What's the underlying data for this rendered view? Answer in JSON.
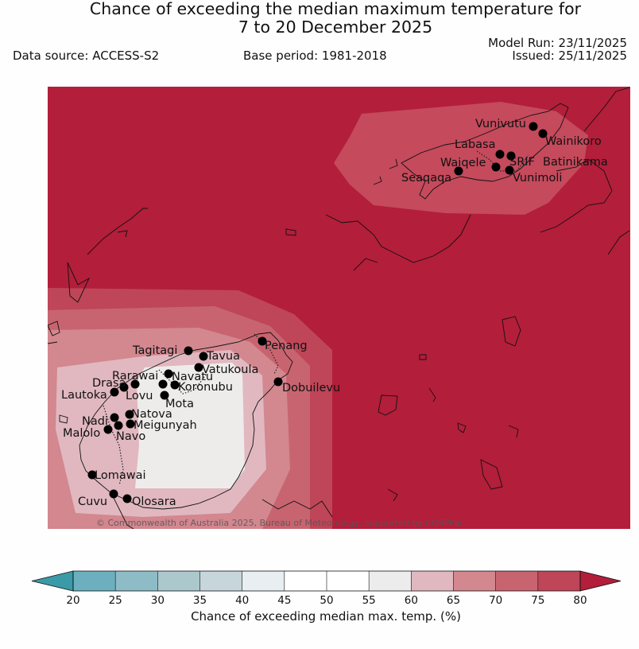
{
  "header": {
    "title_line1": "Chance of exceeding the median maximum temperature for",
    "title_line2": "7 to 20 December 2025",
    "data_source": "Data source: ACCESS-S2",
    "base_period": "Base period: 1981-2018",
    "model_run": "Model Run: 23/11/2025",
    "issued": "Issued: 25/11/2025"
  },
  "map": {
    "copyright": "© Commonwealth of Australia 2025, Bureau of Meteorology, supported by COSPPac",
    "background_color": "#b31e3b",
    "places": [
      {
        "name": "Vunivutu"
      },
      {
        "name": "Wainikoro"
      },
      {
        "name": "Labasa"
      },
      {
        "name": "SRIF"
      },
      {
        "name": "Batinikama"
      },
      {
        "name": "Waiqele"
      },
      {
        "name": "Seaqaqa"
      },
      {
        "name": "Vunimoli"
      },
      {
        "name": "Penang"
      },
      {
        "name": "Tagitagi"
      },
      {
        "name": "Tavua"
      },
      {
        "name": "Vatukoula"
      },
      {
        "name": "Rarawai"
      },
      {
        "name": "Navatu"
      },
      {
        "name": "Koronubu"
      },
      {
        "name": "Dobuilevu"
      },
      {
        "name": "Drasa"
      },
      {
        "name": "Lautoka"
      },
      {
        "name": "Lovu"
      },
      {
        "name": "Mota"
      },
      {
        "name": "Natova"
      },
      {
        "name": "Nadi"
      },
      {
        "name": "Meigunyah"
      },
      {
        "name": "Malolo"
      },
      {
        "name": "Navo"
      },
      {
        "name": "Lomawai"
      },
      {
        "name": "Cuvu"
      },
      {
        "name": "Olosara"
      }
    ]
  },
  "colorbar": {
    "label": "Chance of exceeding median max. temp. (%)",
    "ticks": [
      "20",
      "25",
      "30",
      "35",
      "40",
      "45",
      "50",
      "55",
      "60",
      "65",
      "70",
      "75",
      "80"
    ],
    "under_color": "#3a9aa8",
    "over_color": "#b31e3b",
    "colors": [
      "#6cb0bf",
      "#8ebcc6",
      "#abc8cd",
      "#c7d6da",
      "#e8eef1",
      "#ffffff",
      "#ffffff",
      "#ececec",
      "#e1b8c0",
      "#d3878f",
      "#c86470",
      "#be4658"
    ]
  }
}
